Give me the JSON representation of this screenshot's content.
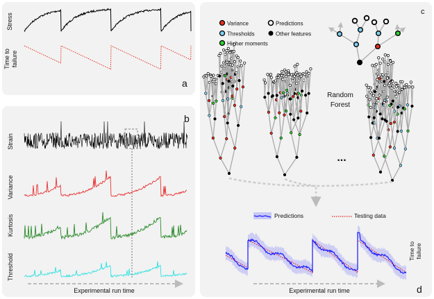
{
  "panel_a": {
    "letter": "a",
    "stress_label": "Stress",
    "ttf_label_line1": "Time to",
    "ttf_label_line2": "failure",
    "stress_color": "#000000",
    "ttf_color": "#e03020"
  },
  "panel_b": {
    "letter": "b",
    "rows": [
      {
        "label": "Strain",
        "color": "#000000"
      },
      {
        "label": "Variance",
        "color": "#e83030"
      },
      {
        "label": "Kurtosis",
        "color": "#2a8a2a"
      },
      {
        "label": "Threshold",
        "color": "#30e0e0"
      }
    ],
    "xaxis_label": "Experimental run time"
  },
  "panel_c": {
    "letter": "c",
    "legend": [
      {
        "label": "Variance",
        "color": "#e8301e"
      },
      {
        "label": "Predictions",
        "color": "#ffffff"
      },
      {
        "label": "Thresholds",
        "color": "#7fd0f0"
      },
      {
        "label": "Other features",
        "color": "#000000"
      },
      {
        "label": "Higher moments",
        "color": "#30d030"
      }
    ],
    "forest_label_line1": "Random",
    "forest_label_line2": "Forest",
    "ellipsis": "..."
  },
  "panel_d": {
    "letter": "d",
    "legend_predictions": "Predictions",
    "legend_testing": "Testing data",
    "ylabel_line1": "Time to",
    "ylabel_line2": "failure",
    "xaxis_label": "Experimental run time",
    "prediction_color": "#1a1aff",
    "band_color": "#c8c8f5",
    "testing_color": "#e02020"
  }
}
